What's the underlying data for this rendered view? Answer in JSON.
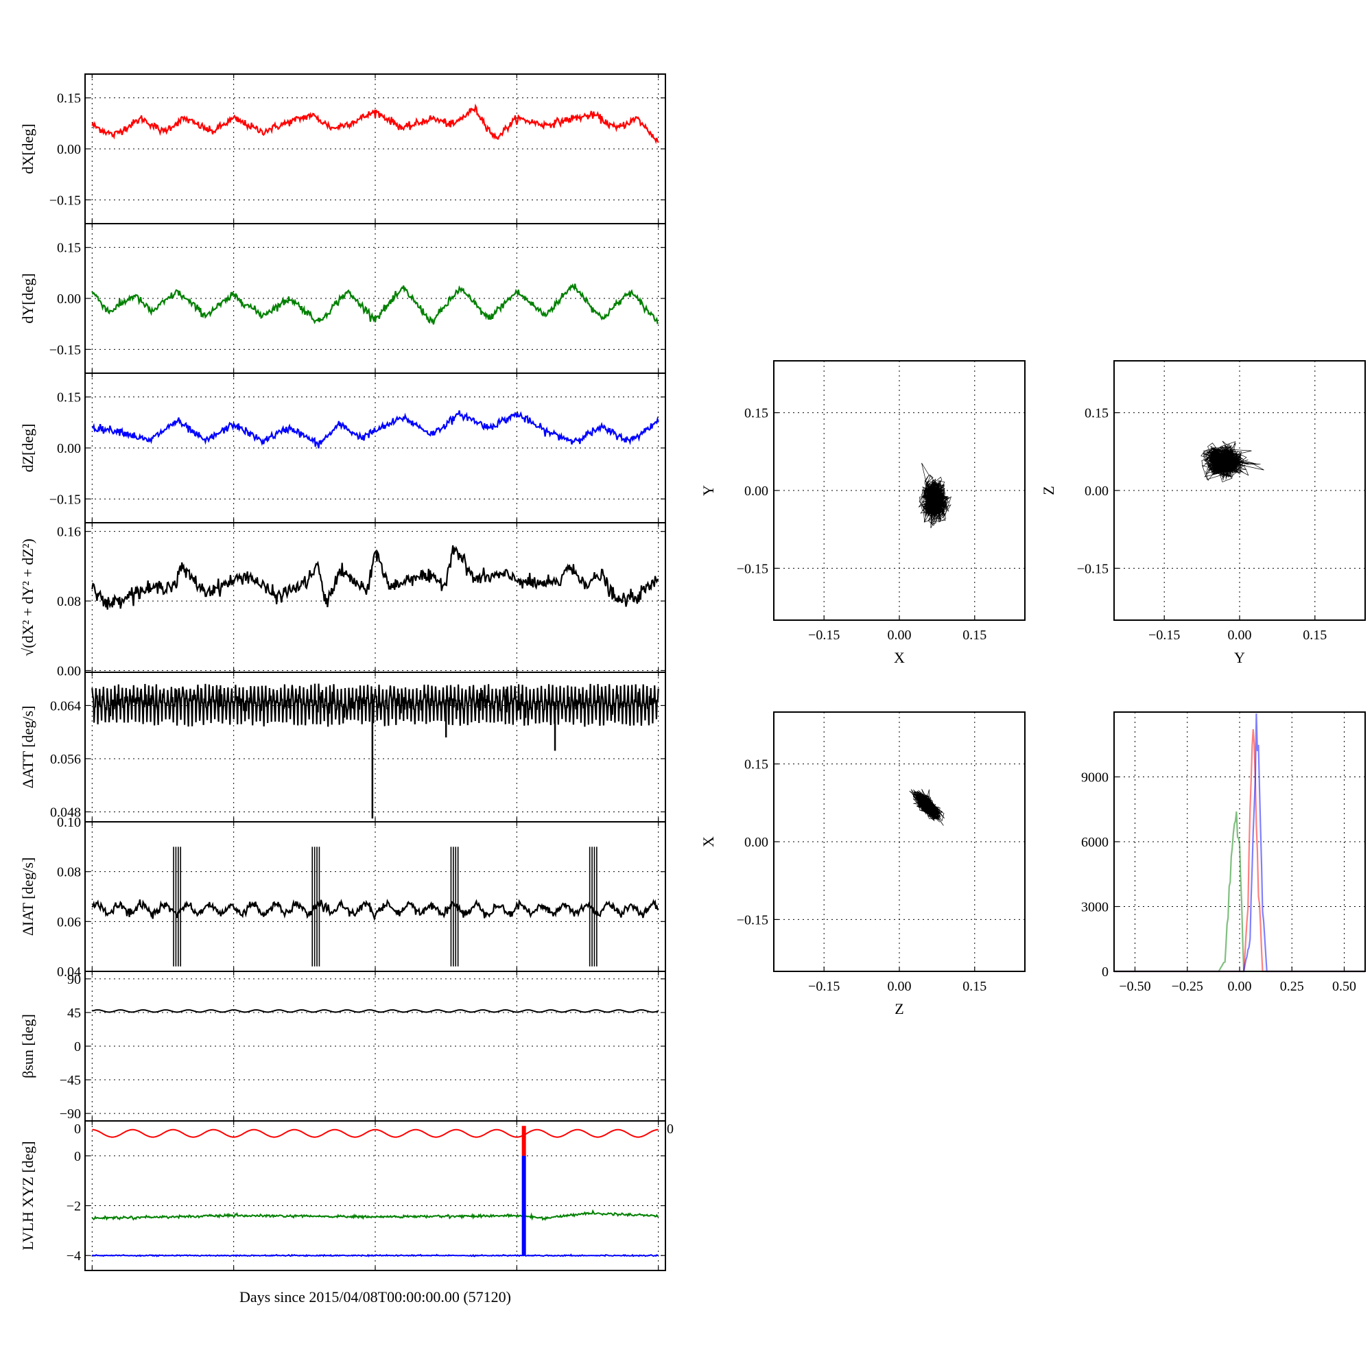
{
  "chart_data": [
    {
      "id": "dx",
      "type": "line",
      "ylabel": "dX[deg]",
      "ylim": [
        -0.22,
        0.22
      ],
      "yticks": [
        -0.15,
        0.0,
        0.15
      ],
      "ytick_labels": [
        "−0.15",
        "0.00",
        "0.15"
      ],
      "xlim": [
        -0.05,
        4.05
      ],
      "grid": true,
      "series": [
        {
          "color": "#ff0000",
          "x": [
            0,
            0.15,
            0.35,
            0.5,
            0.65,
            0.85,
            1.0,
            1.2,
            1.4,
            1.55,
            1.7,
            1.85,
            2.0,
            2.2,
            2.4,
            2.55,
            2.7,
            2.85,
            3.0,
            3.2,
            3.4,
            3.55,
            3.7,
            3.85,
            4.0
          ],
          "y": [
            0.07,
            0.04,
            0.09,
            0.05,
            0.09,
            0.05,
            0.09,
            0.05,
            0.08,
            0.1,
            0.06,
            0.08,
            0.11,
            0.06,
            0.09,
            0.07,
            0.12,
            0.03,
            0.09,
            0.07,
            0.09,
            0.1,
            0.06,
            0.09,
            0.02
          ]
        }
      ]
    },
    {
      "id": "dy",
      "type": "line",
      "ylabel": "dY[deg]",
      "ylim": [
        -0.22,
        0.22
      ],
      "yticks": [
        -0.15,
        0.0,
        0.15
      ],
      "ytick_labels": [
        "−0.15",
        "0.00",
        "0.15"
      ],
      "xlim": [
        -0.05,
        4.05
      ],
      "grid": true,
      "series": [
        {
          "color": "#008000",
          "x": [
            0,
            0.12,
            0.3,
            0.42,
            0.6,
            0.8,
            1.0,
            1.2,
            1.4,
            1.6,
            1.8,
            2.0,
            2.2,
            2.4,
            2.6,
            2.8,
            3.0,
            3.2,
            3.4,
            3.6,
            3.8,
            4.0
          ],
          "y": [
            0.02,
            -0.04,
            0.01,
            -0.04,
            0.02,
            -0.05,
            0.01,
            -0.05,
            0.0,
            -0.07,
            0.02,
            -0.06,
            0.03,
            -0.07,
            0.03,
            -0.06,
            0.02,
            -0.05,
            0.04,
            -0.06,
            0.02,
            -0.07
          ]
        }
      ]
    },
    {
      "id": "dz",
      "type": "line",
      "ylabel": "dZ[deg]",
      "ylim": [
        -0.22,
        0.22
      ],
      "yticks": [
        -0.15,
        0.0,
        0.15
      ],
      "ytick_labels": [
        "−0.15",
        "0.00",
        "0.15"
      ],
      "xlim": [
        -0.05,
        4.05
      ],
      "grid": true,
      "series": [
        {
          "color": "#0000ff",
          "x": [
            0,
            0.2,
            0.4,
            0.6,
            0.8,
            1.0,
            1.2,
            1.4,
            1.6,
            1.75,
            1.9,
            2.0,
            2.2,
            2.4,
            2.6,
            2.8,
            3.0,
            3.2,
            3.4,
            3.6,
            3.8,
            4.0
          ],
          "y": [
            0.06,
            0.05,
            0.02,
            0.08,
            0.02,
            0.07,
            0.02,
            0.06,
            0.01,
            0.07,
            0.03,
            0.05,
            0.09,
            0.04,
            0.1,
            0.06,
            0.1,
            0.05,
            0.02,
            0.06,
            0.02,
            0.08
          ]
        }
      ]
    },
    {
      "id": "dmag",
      "type": "line",
      "ylabel": "√(dX² + dY² + dZ²)",
      "ylim": [
        -0.002,
        0.17
      ],
      "yticks": [
        0.0,
        0.08,
        0.16
      ],
      "ytick_labels": [
        "0.00",
        "0.08",
        "0.16"
      ],
      "xlim": [
        -0.05,
        4.05
      ],
      "grid": true,
      "series": [
        {
          "color": "#000000",
          "x": [
            0,
            0.1,
            0.3,
            0.6,
            0.62,
            0.8,
            0.95,
            1.1,
            1.3,
            1.5,
            1.6,
            1.65,
            1.75,
            1.95,
            2.0,
            2.1,
            2.3,
            2.5,
            2.55,
            2.7,
            2.9,
            3.1,
            3.3,
            3.35,
            3.5,
            3.6,
            3.7,
            3.85,
            4.0
          ],
          "y": [
            0.1,
            0.075,
            0.09,
            0.1,
            0.12,
            0.09,
            0.1,
            0.11,
            0.085,
            0.1,
            0.12,
            0.075,
            0.115,
            0.09,
            0.14,
            0.095,
            0.11,
            0.1,
            0.145,
            0.105,
            0.11,
            0.1,
            0.1,
            0.12,
            0.1,
            0.11,
            0.08,
            0.085,
            0.105
          ]
        }
      ]
    },
    {
      "id": "datt",
      "type": "line",
      "ylabel": "ΔATT [deg/s]",
      "ylim": [
        0.0465,
        0.069
      ],
      "yticks": [
        0.048,
        0.056,
        0.064
      ],
      "ytick_labels": [
        "0.048",
        "0.056",
        "0.064"
      ],
      "xlim": [
        -0.05,
        4.05
      ],
      "grid": true,
      "baseline": 0.0645,
      "dips": [
        {
          "x": 1.98,
          "y": 0.047
        },
        {
          "x": 2.5,
          "y": 0.0592
        },
        {
          "x": 3.27,
          "y": 0.0572
        }
      ],
      "series": [
        {
          "color": "#000000"
        }
      ]
    },
    {
      "id": "diat",
      "type": "line",
      "ylabel": "ΔIAT [deg/s]",
      "ylim": [
        0.04,
        0.1
      ],
      "yticks": [
        0.04,
        0.06,
        0.08,
        0.1
      ],
      "ytick_labels": [
        "0.04",
        "0.06",
        "0.08",
        "0.10"
      ],
      "xlim": [
        -0.05,
        4.05
      ],
      "grid": true,
      "baseline": 0.065,
      "bursts": [
        0.6,
        1.58,
        2.56,
        3.54
      ],
      "burst_range": [
        0.042,
        0.09
      ],
      "series": [
        {
          "color": "#000000"
        }
      ]
    },
    {
      "id": "beta",
      "type": "line",
      "ylabel": "βsun [deg]",
      "ylim": [
        -100,
        100
      ],
      "yticks": [
        -90,
        -45,
        0,
        45,
        90
      ],
      "ytick_labels": [
        "−90",
        "−45",
        "0",
        "45",
        "90"
      ],
      "xlim": [
        -0.05,
        4.05
      ],
      "grid": true,
      "series": [
        {
          "color": "#000000",
          "mean": 47,
          "amplitude": 1.5,
          "periods": 25
        }
      ]
    },
    {
      "id": "lvlh",
      "type": "line",
      "ylabel": "LVLH XYZ [deg]",
      "xlabel": "Days since 2015/04/08T00:00:00.00 (57120)",
      "ylim": [
        -4.6,
        1.4
      ],
      "yticks": [
        -4,
        -2,
        0
      ],
      "ytick_labels": [
        "−4",
        "−2",
        "0"
      ],
      "extra_tick_labels": [
        "0",
        "0"
      ],
      "xlim": [
        -0.05,
        4.05
      ],
      "grid": true,
      "series": [
        {
          "color": "#ff0000",
          "kind": "wave",
          "mean": 0.9,
          "amplitude": 0.3,
          "periods": 14
        },
        {
          "color": "#008000",
          "x": [
            0,
            1.0,
            2.0,
            3.0,
            3.2,
            3.5,
            4.0
          ],
          "y": [
            -2.5,
            -2.4,
            -2.45,
            -2.4,
            -2.5,
            -2.3,
            -2.4
          ]
        },
        {
          "color": "#0000ff",
          "x": [
            0,
            4.0
          ],
          "y": [
            -4.0,
            -4.0
          ]
        }
      ],
      "spike": {
        "x": 3.05,
        "from": 1.2,
        "to": -4.0,
        "top_color": "#ff0000",
        "bottom_color": "#0000ff"
      }
    },
    {
      "id": "scatter_xy",
      "type": "scatter",
      "xlabel": "X",
      "ylabel": "Y",
      "xlim": [
        -0.25,
        0.25
      ],
      "ylim": [
        -0.25,
        0.25
      ],
      "ticks": [
        -0.15,
        0.0,
        0.15
      ],
      "tick_labels": [
        "−0.15",
        "0.00",
        "0.15"
      ],
      "grid": true,
      "cloud": {
        "cx": 0.07,
        "cy": -0.02,
        "sx": 0.018,
        "sy": 0.03,
        "rho": 0.0
      }
    },
    {
      "id": "scatter_yz",
      "type": "scatter",
      "xlabel": "Y",
      "ylabel": "Z",
      "xlim": [
        -0.25,
        0.25
      ],
      "ylim": [
        -0.25,
        0.25
      ],
      "ticks": [
        -0.15,
        0.0,
        0.15
      ],
      "tick_labels": [
        "−0.15",
        "0.00",
        "0.15"
      ],
      "grid": true,
      "cloud": {
        "cx": -0.03,
        "cy": 0.055,
        "sx": 0.03,
        "sy": 0.022,
        "rho": 0.0
      }
    },
    {
      "id": "scatter_zx",
      "type": "scatter",
      "xlabel": "Z",
      "ylabel": "X",
      "xlim": [
        -0.25,
        0.25
      ],
      "ylim": [
        -0.25,
        0.25
      ],
      "ticks": [
        -0.15,
        0.0,
        0.15
      ],
      "tick_labels": [
        "−0.15",
        "0.00",
        "0.15"
      ],
      "grid": true,
      "cloud": {
        "cx": 0.055,
        "cy": 0.07,
        "sx": 0.02,
        "sy": 0.02,
        "rho": -0.75
      }
    },
    {
      "id": "histogram",
      "type": "line",
      "xlim": [
        -0.6,
        0.6
      ],
      "ylim": [
        0,
        12000
      ],
      "xticks": [
        -0.5,
        -0.25,
        0.0,
        0.25,
        0.5
      ],
      "xtick_labels": [
        "−0.50",
        "−0.25",
        "0.00",
        "0.25",
        "0.50"
      ],
      "yticks": [
        0,
        3000,
        6000,
        9000
      ],
      "ytick_labels": [
        "0",
        "3000",
        "6000",
        "9000"
      ],
      "grid": true,
      "series": [
        {
          "color": "#008000",
          "x": [
            -0.6,
            -0.1,
            -0.07,
            -0.05,
            -0.03,
            -0.015,
            0.0,
            0.02,
            0.6
          ],
          "y": [
            0,
            0,
            500,
            3500,
            6500,
            7000,
            5500,
            0,
            0
          ]
        },
        {
          "color": "#ff0000",
          "x": [
            -0.6,
            0.02,
            0.04,
            0.05,
            0.06,
            0.07,
            0.09,
            0.11,
            0.6
          ],
          "y": [
            0,
            0,
            3000,
            7500,
            10800,
            10500,
            4000,
            0,
            0
          ]
        },
        {
          "color": "#0000ff",
          "x": [
            -0.6,
            0.02,
            0.05,
            0.07,
            0.08,
            0.09,
            0.11,
            0.13,
            0.6
          ],
          "y": [
            0,
            0,
            1500,
            8000,
            11400,
            10000,
            3000,
            0,
            0
          ]
        }
      ]
    }
  ]
}
